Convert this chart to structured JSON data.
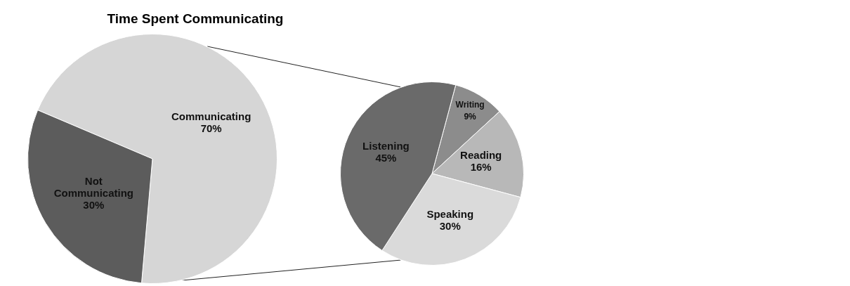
{
  "chart_data": [
    {
      "type": "pie",
      "title": "Time Spent Communicating",
      "categories": [
        "Communicating",
        "Not Communicating"
      ],
      "values": [
        70,
        30
      ],
      "colors": [
        "#d6d6d6",
        "#5c5c5c"
      ],
      "value_labels": [
        "70%",
        "30%"
      ]
    },
    {
      "type": "pie",
      "categories": [
        "Writing",
        "Reading",
        "Speaking",
        "Listening"
      ],
      "values": [
        9,
        16,
        30,
        45
      ],
      "colors": [
        "#8c8c8c",
        "#b8b8b8",
        "#dadada",
        "#6a6a6a"
      ],
      "value_labels": [
        "9%",
        "16%",
        "30%",
        "45%"
      ]
    }
  ]
}
